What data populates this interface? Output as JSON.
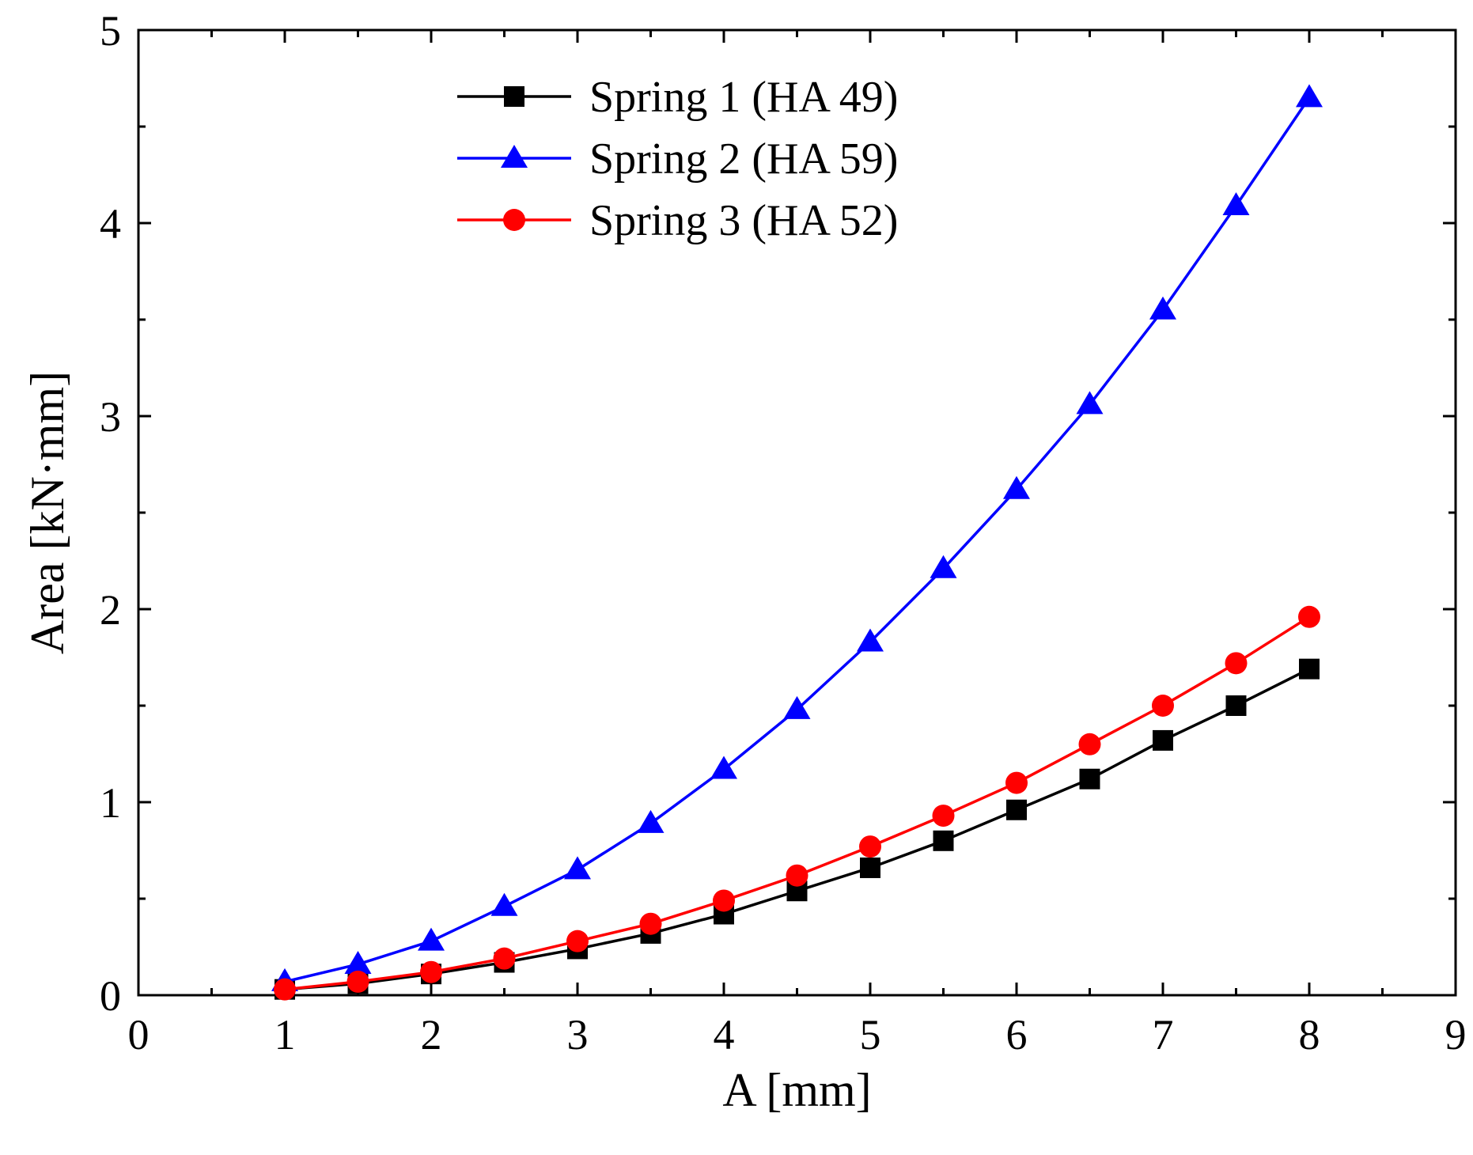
{
  "chart_data": {
    "type": "line",
    "title": "",
    "xlabel": "A [mm]",
    "ylabel": "Area [kN·mm]",
    "xlim": [
      0,
      9
    ],
    "ylim": [
      0,
      5
    ],
    "xticks": [
      0,
      1,
      2,
      3,
      4,
      5,
      6,
      7,
      8,
      9
    ],
    "yticks": [
      0,
      1,
      2,
      3,
      4,
      5
    ],
    "xtick_labels": [
      "0",
      "1",
      "2",
      "3",
      "4",
      "5",
      "6",
      "7",
      "8",
      "9"
    ],
    "ytick_labels": [
      "0",
      "1",
      "2",
      "3",
      "4",
      "5"
    ],
    "grid": false,
    "legend_position": "top-center",
    "x": [
      1,
      1.5,
      2,
      2.5,
      3,
      3.5,
      4,
      4.5,
      5,
      5.5,
      6,
      6.5,
      7,
      7.5,
      8
    ],
    "series": [
      {
        "name": "Spring 1 (HA 49)",
        "color": "#000000",
        "marker": "square",
        "values": [
          0.03,
          0.06,
          0.11,
          0.17,
          0.24,
          0.32,
          0.42,
          0.54,
          0.66,
          0.8,
          0.96,
          1.12,
          1.32,
          1.5,
          1.69
        ]
      },
      {
        "name": "Spring 2 (HA 59)",
        "color": "#0000ff",
        "marker": "triangle",
        "values": [
          0.07,
          0.16,
          0.28,
          0.46,
          0.65,
          0.89,
          1.17,
          1.48,
          1.83,
          2.21,
          2.62,
          3.06,
          3.55,
          4.09,
          4.65
        ]
      },
      {
        "name": "Spring 3 (HA 52)",
        "color": "#ff0000",
        "marker": "circle",
        "values": [
          0.03,
          0.07,
          0.12,
          0.19,
          0.28,
          0.37,
          0.49,
          0.62,
          0.77,
          0.93,
          1.1,
          1.3,
          1.5,
          1.72,
          1.96
        ]
      }
    ]
  }
}
